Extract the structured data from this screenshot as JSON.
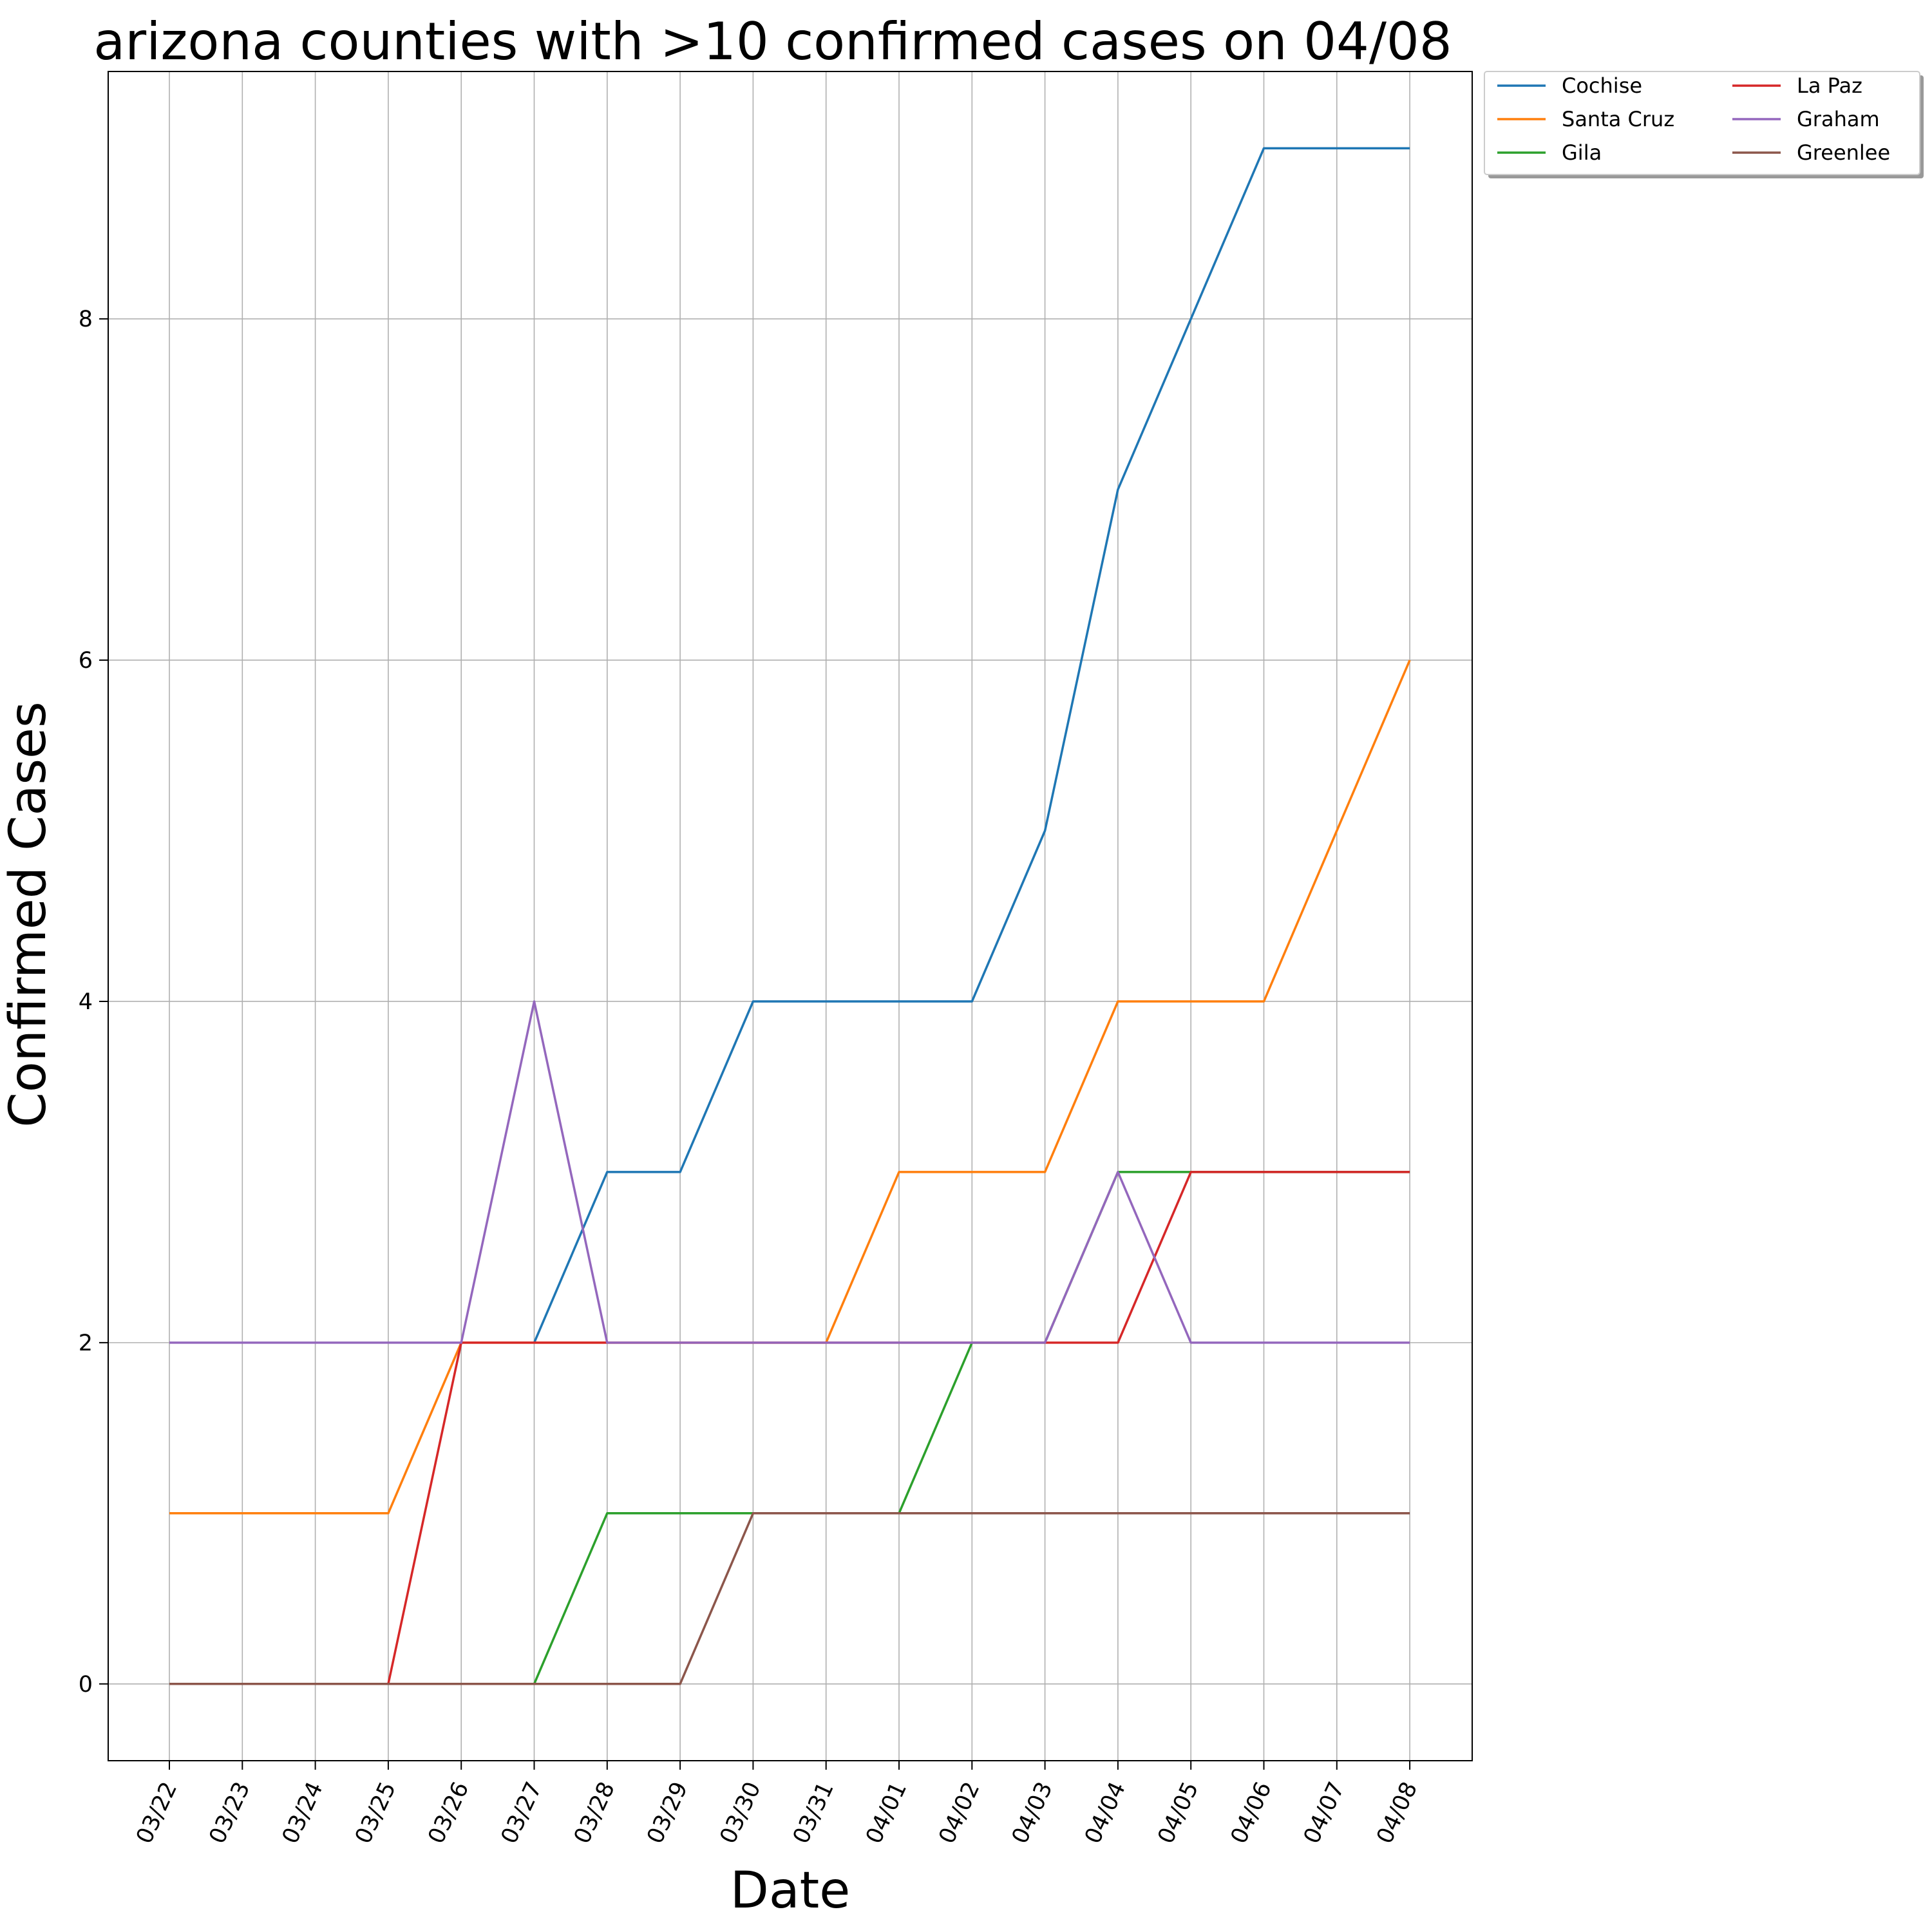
{
  "chart_data": {
    "type": "line",
    "title": "arizona counties with >10 confirmed cases on 04/08",
    "xlabel": "Date",
    "ylabel": "Confirmed Cases",
    "categories": [
      "03/22",
      "03/23",
      "03/24",
      "03/25",
      "03/26",
      "03/27",
      "03/28",
      "03/29",
      "03/30",
      "03/31",
      "04/01",
      "04/02",
      "04/03",
      "04/04",
      "04/05",
      "04/06",
      "04/07",
      "04/08"
    ],
    "ylim": [
      -0.45,
      9.45
    ],
    "yticks": [
      0,
      2,
      4,
      6,
      8
    ],
    "grid": true,
    "legend_placement": "outside-top-right",
    "series": [
      {
        "name": "Cochise",
        "color": "#1f77b4",
        "values": [
          null,
          null,
          null,
          null,
          null,
          2,
          3,
          3,
          4,
          4,
          4,
          4,
          5,
          7,
          8,
          9,
          9,
          9
        ]
      },
      {
        "name": "Santa Cruz",
        "color": "#ff7f0e",
        "values": [
          1,
          1,
          1,
          1,
          2,
          2,
          2,
          2,
          2,
          2,
          3,
          3,
          3,
          4,
          4,
          4,
          5,
          6
        ]
      },
      {
        "name": "Gila",
        "color": "#2ca02c",
        "values": [
          null,
          null,
          null,
          null,
          null,
          0,
          1,
          1,
          1,
          1,
          1,
          2,
          2,
          3,
          3,
          3,
          3,
          3
        ]
      },
      {
        "name": "La Paz",
        "color": "#d62728",
        "values": [
          null,
          null,
          null,
          0,
          2,
          2,
          2,
          2,
          2,
          2,
          2,
          2,
          2,
          2,
          3,
          3,
          3,
          3
        ]
      },
      {
        "name": "Graham",
        "color": "#9467bd",
        "values": [
          2,
          2,
          2,
          2,
          2,
          4,
          2,
          2,
          2,
          2,
          2,
          2,
          2,
          3,
          2,
          2,
          2,
          2
        ]
      },
      {
        "name": "Greenlee",
        "color": "#8c564b",
        "values": [
          0,
          0,
          0,
          0,
          0,
          0,
          0,
          0,
          1,
          1,
          1,
          1,
          1,
          1,
          1,
          1,
          1,
          1
        ]
      }
    ]
  }
}
